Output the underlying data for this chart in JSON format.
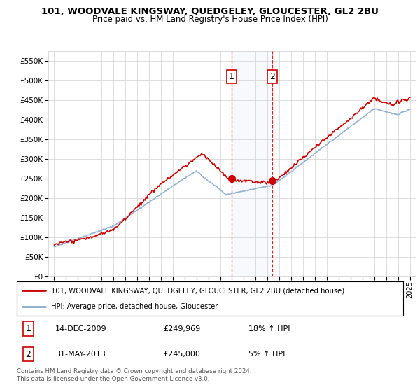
{
  "title": "101, WOODVALE KINGSWAY, QUEDGELEY, GLOUCESTER, GL2 2BU",
  "subtitle": "Price paid vs. HM Land Registry's House Price Index (HPI)",
  "legend_line1": "101, WOODVALE KINGSWAY, QUEDGELEY, GLOUCESTER, GL2 2BU (detached house)",
  "legend_line2": "HPI: Average price, detached house, Gloucester",
  "transaction1_date": "14-DEC-2009",
  "transaction1_price": "£249,969",
  "transaction1_hpi": "18% ↑ HPI",
  "transaction2_date": "31-MAY-2013",
  "transaction2_price": "£245,000",
  "transaction2_hpi": "5% ↑ HPI",
  "footer": "Contains HM Land Registry data © Crown copyright and database right 2024.\nThis data is licensed under the Open Government Licence v3.0.",
  "price_color": "#cc0000",
  "hpi_color": "#88aacc",
  "transaction1_x": 2009.95,
  "transaction2_x": 2013.41,
  "t1_y": 249969,
  "t2_y": 245000,
  "ylim_min": 0,
  "ylim_max": 575000,
  "xlim_min": 1994.5,
  "xlim_max": 2025.5,
  "yticks": [
    0,
    50000,
    100000,
    150000,
    200000,
    250000,
    300000,
    350000,
    400000,
    450000,
    500000,
    550000
  ],
  "xticks": [
    1995,
    1996,
    1997,
    1998,
    1999,
    2000,
    2001,
    2002,
    2003,
    2004,
    2005,
    2006,
    2007,
    2008,
    2009,
    2010,
    2011,
    2012,
    2013,
    2014,
    2015,
    2016,
    2017,
    2018,
    2019,
    2020,
    2021,
    2022,
    2023,
    2024,
    2025
  ]
}
